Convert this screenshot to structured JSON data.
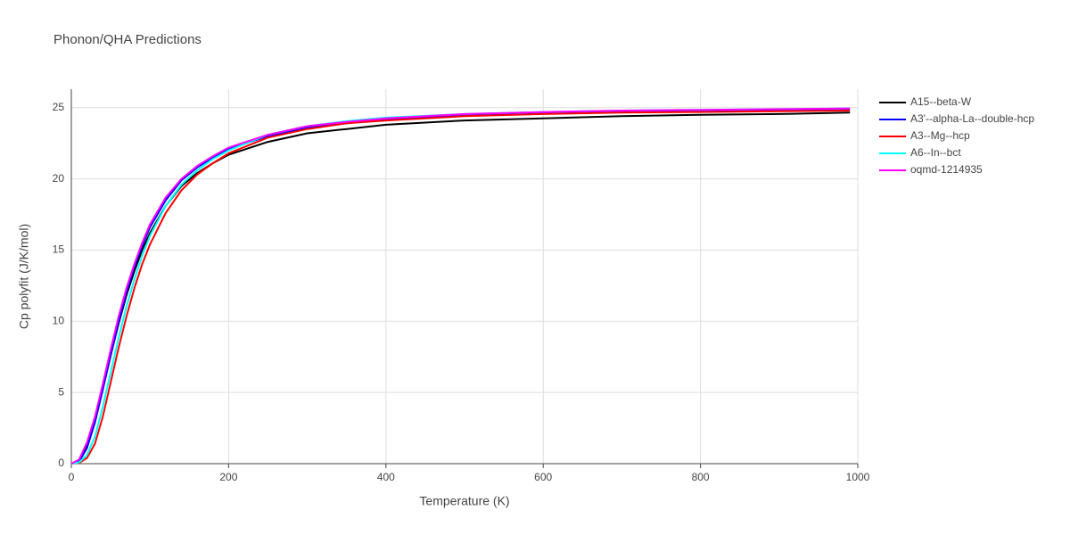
{
  "chart_data": {
    "type": "line",
    "title": "Phonon/QHA Predictions",
    "x_label": "Temperature (K)",
    "y_label": "Cp polyfit (J/K/mol)",
    "x": [
      0,
      10,
      20,
      30,
      40,
      50,
      60,
      70,
      80,
      90,
      100,
      120,
      140,
      160,
      180,
      200,
      250,
      300,
      350,
      400,
      500,
      600,
      700,
      800,
      900,
      990
    ],
    "series": [
      {
        "name": "A15--beta-W",
        "color": "#000000",
        "values": [
          0,
          0.2,
          1.2,
          3,
          5.3,
          7.6,
          9.8,
          11.8,
          13.5,
          15,
          16.2,
          18.1,
          19.5,
          20.4,
          21.1,
          21.7,
          22.6,
          23.2,
          23.5,
          23.8,
          24.1,
          24.25,
          24.4,
          24.5,
          24.55,
          24.65
        ]
      },
      {
        "name": "A3'--alpha-La--double-hcp",
        "color": "#0000ff",
        "values": [
          0,
          0.15,
          1.1,
          2.9,
          5.2,
          7.6,
          9.9,
          12,
          13.8,
          15.3,
          16.6,
          18.5,
          19.9,
          20.8,
          21.5,
          22.1,
          23,
          23.6,
          23.9,
          24.2,
          24.5,
          24.65,
          24.75,
          24.8,
          24.85,
          24.9
        ]
      },
      {
        "name": "A3--Mg--hcp",
        "color": "#ff0000",
        "values": [
          0,
          0.05,
          0.4,
          1.4,
          3.3,
          5.7,
          8.1,
          10.3,
          12.3,
          14,
          15.4,
          17.6,
          19.2,
          20.3,
          21.1,
          21.8,
          22.9,
          23.5,
          23.9,
          24.1,
          24.4,
          24.55,
          24.65,
          24.7,
          24.75,
          24.8
        ]
      },
      {
        "name": "A6--In--bct",
        "color": "#00ffff",
        "values": [
          0,
          0.1,
          0.6,
          1.9,
          4,
          6.4,
          8.8,
          11,
          12.9,
          14.6,
          16,
          18.1,
          19.6,
          20.6,
          21.4,
          22,
          23.1,
          23.7,
          24.05,
          24.3,
          24.55,
          24.7,
          24.8,
          24.85,
          24.9,
          24.95
        ]
      },
      {
        "name": "oqmd-1214935",
        "color": "#ff00ff",
        "values": [
          0,
          0.3,
          1.5,
          3.3,
          5.6,
          8,
          10.3,
          12.3,
          14,
          15.5,
          16.8,
          18.7,
          20,
          20.9,
          21.6,
          22.2,
          23.1,
          23.7,
          24,
          24.25,
          24.55,
          24.7,
          24.8,
          24.85,
          24.9,
          24.95
        ]
      }
    ],
    "xlim": [
      0,
      1000
    ],
    "ylim": [
      0,
      26.3
    ],
    "xticks": [
      0,
      200,
      400,
      600,
      800,
      1000
    ],
    "yticks": [
      0,
      5,
      10,
      15,
      20,
      25
    ],
    "grid": true,
    "legend": "right"
  }
}
